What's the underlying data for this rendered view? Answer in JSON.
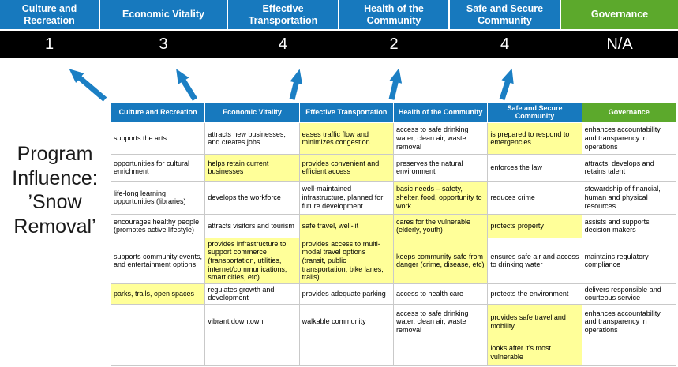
{
  "title": "Program Influence: ’Snow Removal’",
  "scoreboard": {
    "items": [
      {
        "label": "Culture and Recreation",
        "score": "1",
        "color": "#1779BE"
      },
      {
        "label": "Economic Vitality",
        "score": "3",
        "color": "#1779BE"
      },
      {
        "label": "Effective Transportation",
        "score": "4",
        "color": "#1779BE"
      },
      {
        "label": "Health of the Community",
        "score": "2",
        "color": "#1779BE"
      },
      {
        "label": "Safe and Secure Community",
        "score": "4",
        "color": "#1779BE"
      },
      {
        "label": "Governance",
        "score": "N/A",
        "color": "#5CA92C"
      }
    ]
  },
  "matrix": {
    "headers": [
      {
        "label": "Culture and Recreation",
        "color": "#1779BE"
      },
      {
        "label": "Economic Vitality",
        "color": "#1779BE"
      },
      {
        "label": "Effective Transportation",
        "color": "#1779BE"
      },
      {
        "label": "Health of the Community",
        "color": "#1779BE"
      },
      {
        "label": "Safe and Secure Community",
        "color": "#1779BE"
      },
      {
        "label": "Governance",
        "color": "#5CA92C"
      }
    ],
    "rows": [
      [
        {
          "text": "supports the arts",
          "highlight": false
        },
        {
          "text": "attracts new businesses, and creates jobs",
          "highlight": false
        },
        {
          "text": "eases traffic flow and minimizes congestion",
          "highlight": true
        },
        {
          "text": "access to safe drinking water, clean air, waste removal",
          "highlight": false
        },
        {
          "text": "is prepared to respond to emergencies",
          "highlight": true
        },
        {
          "text": "enhances accountability and transparency in operations",
          "highlight": false
        }
      ],
      [
        {
          "text": "opportunities for cultural enrichment",
          "highlight": false
        },
        {
          "text": "helps retain current businesses",
          "highlight": true
        },
        {
          "text": "provides convenient and efficient access",
          "highlight": true
        },
        {
          "text": "preserves the natural environment",
          "highlight": false
        },
        {
          "text": "enforces the law",
          "highlight": false
        },
        {
          "text": "attracts, develops and retains talent",
          "highlight": false
        }
      ],
      [
        {
          "text": "life-long learning opportunities (libraries)",
          "highlight": false
        },
        {
          "text": "develops the workforce",
          "highlight": false
        },
        {
          "text": "well-maintained infrastructure, planned for future development",
          "highlight": false
        },
        {
          "text": "basic needs – safety, shelter, food, opportunity to work",
          "highlight": true
        },
        {
          "text": "reduces crime",
          "highlight": false
        },
        {
          "text": "stewardship of financial, human and physical resources",
          "highlight": false
        }
      ],
      [
        {
          "text": "encourages healthy people (promotes active lifestyle)",
          "highlight": false
        },
        {
          "text": "attracts visitors and tourism",
          "highlight": false
        },
        {
          "text": "safe travel, well-lit",
          "highlight": true
        },
        {
          "text": "cares for the vulnerable (elderly, youth)",
          "highlight": true
        },
        {
          "text": "protects property",
          "highlight": true
        },
        {
          "text": "assists and supports decision makers",
          "highlight": false
        }
      ],
      [
        {
          "text": "supports community events, and entertainment options",
          "highlight": false
        },
        {
          "text": "provides infrastructure to support commerce (transportation, utilities, internet/communications, smart cities, etc)",
          "highlight": true
        },
        {
          "text": "provides access to multi-modal travel options (transit, public transportation, bike lanes, trails)",
          "highlight": true
        },
        {
          "text": "keeps community safe from danger (crime, disease, etc)",
          "highlight": true
        },
        {
          "text": "ensures safe air and access to drinking water",
          "highlight": false
        },
        {
          "text": "maintains regulatory compliance",
          "highlight": false
        }
      ],
      [
        {
          "text": "parks, trails, open spaces",
          "highlight": true
        },
        {
          "text": "regulates growth and development",
          "highlight": false
        },
        {
          "text": "provides adequate parking",
          "highlight": false
        },
        {
          "text": "access to health care",
          "highlight": false
        },
        {
          "text": "protects the environment",
          "highlight": false
        },
        {
          "text": "delivers responsible and courteous service",
          "highlight": false
        }
      ],
      [
        {
          "text": "",
          "highlight": false
        },
        {
          "text": "vibrant downtown",
          "highlight": false
        },
        {
          "text": "walkable community",
          "highlight": false
        },
        {
          "text": "access to safe drinking water, clean air, waste removal",
          "highlight": false
        },
        {
          "text": "provides safe travel and mobility",
          "highlight": true
        },
        {
          "text": "enhances accountability and transparency in operations",
          "highlight": false
        }
      ],
      [
        {
          "text": "",
          "highlight": false
        },
        {
          "text": "",
          "highlight": false
        },
        {
          "text": "",
          "highlight": false
        },
        {
          "text": "",
          "highlight": false
        },
        {
          "text": "looks after it's most vulnerable",
          "highlight": true
        },
        {
          "text": "",
          "highlight": false
        }
      ]
    ]
  },
  "colors": {
    "header_blue": "#1779BE",
    "header_green": "#5CA92C",
    "score_band_bg": "#000000",
    "score_text": "#FFFFFF",
    "highlight": "#FFFF99",
    "arrow": "#1B7FC4",
    "cell_border": "#C9C9C9"
  }
}
